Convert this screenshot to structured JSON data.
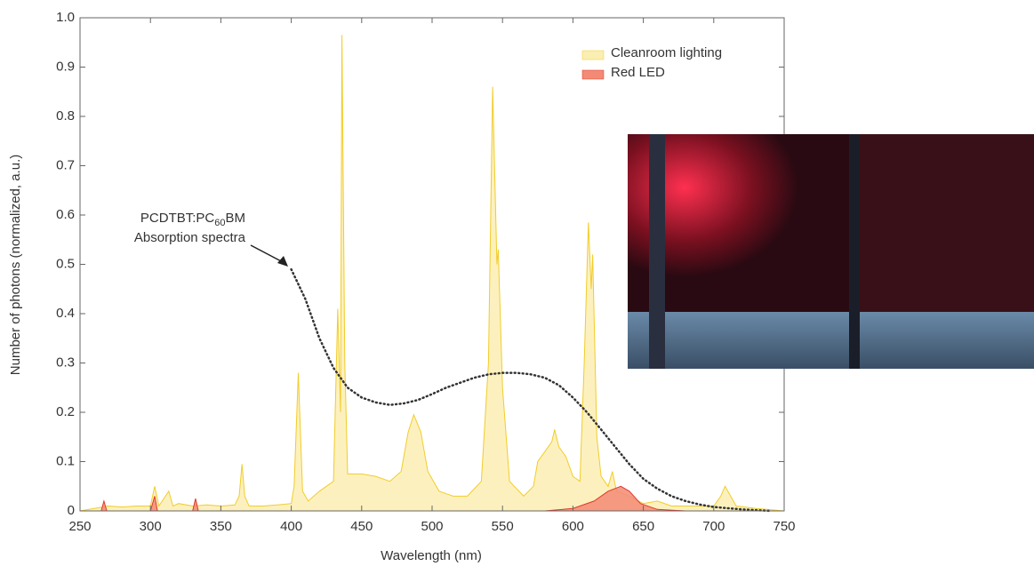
{
  "chart_data": {
    "type": "area",
    "xlabel": "Wavelength (nm)",
    "ylabel": "Number of photons (normalized, a.u.)",
    "xlim": [
      250,
      750
    ],
    "ylim": [
      0,
      1
    ],
    "xticks": [
      250,
      300,
      350,
      400,
      450,
      500,
      550,
      600,
      650,
      700,
      750
    ],
    "yticks": [
      0,
      0.1,
      0.2,
      0.3,
      0.4,
      0.5,
      0.6,
      0.7,
      0.8,
      0.9,
      {
        "value": 1,
        "label": "1.0"
      }
    ],
    "legend": "upper right",
    "series": [
      {
        "name": "Cleanroom lighting",
        "color": "#f2cc2a",
        "fill": "#fbeeb3",
        "x": [
          250,
          260,
          270,
          280,
          290,
          300,
          303,
          306,
          313,
          316,
          320,
          330,
          340,
          350,
          360,
          363,
          365,
          367,
          370,
          380,
          390,
          400,
          402,
          405,
          408,
          412,
          420,
          430,
          433,
          435,
          436,
          438,
          440,
          450,
          460,
          470,
          478,
          483,
          487,
          492,
          497,
          505,
          515,
          525,
          535,
          540,
          543,
          546,
          547,
          550,
          555,
          565,
          572,
          575,
          580,
          585,
          587,
          590,
          595,
          600,
          605,
          608,
          611,
          613,
          614,
          617,
          620,
          625,
          628,
          631,
          640,
          650,
          660,
          670,
          680,
          690,
          700,
          705,
          708,
          712,
          716,
          730,
          750
        ],
        "values": [
          0,
          0.005,
          0.01,
          0.008,
          0.01,
          0.01,
          0.05,
          0.01,
          0.04,
          0.01,
          0.015,
          0.01,
          0.012,
          0.01,
          0.012,
          0.03,
          0.095,
          0.03,
          0.01,
          0.01,
          0.012,
          0.015,
          0.05,
          0.28,
          0.04,
          0.02,
          0.04,
          0.06,
          0.41,
          0.2,
          0.965,
          0.3,
          0.075,
          0.075,
          0.07,
          0.06,
          0.08,
          0.16,
          0.195,
          0.16,
          0.08,
          0.04,
          0.03,
          0.03,
          0.06,
          0.3,
          0.86,
          0.5,
          0.53,
          0.25,
          0.06,
          0.03,
          0.05,
          0.1,
          0.12,
          0.14,
          0.165,
          0.13,
          0.11,
          0.07,
          0.06,
          0.3,
          0.585,
          0.45,
          0.52,
          0.15,
          0.07,
          0.05,
          0.08,
          0.04,
          0.03,
          0.015,
          0.02,
          0.01,
          0.01,
          0.01,
          0.01,
          0.03,
          0.05,
          0.03,
          0.01,
          0.005,
          0
        ]
      },
      {
        "name": "Red LED",
        "color": "#e0392a",
        "fill": "#f38a76",
        "x": [
          250,
          265,
          267,
          269,
          300,
          303,
          305,
          330,
          332,
          334,
          400,
          580,
          600,
          615,
          625,
          634,
          640,
          648,
          660,
          680,
          750
        ],
        "values": [
          0,
          0,
          0.02,
          0,
          0,
          0.03,
          0,
          0,
          0.025,
          0,
          0,
          0,
          0.005,
          0.02,
          0.04,
          0.05,
          0.04,
          0.015,
          0.003,
          0,
          0
        ]
      },
      {
        "color": "#333333",
        "dashed": true,
        "x": [
          400,
          410,
          420,
          430,
          440,
          450,
          460,
          470,
          480,
          490,
          500,
          510,
          520,
          530,
          540,
          550,
          560,
          570,
          580,
          590,
          600,
          610,
          620,
          630,
          640,
          650,
          660,
          670,
          680,
          690,
          700,
          720,
          740
        ],
        "values": [
          0.49,
          0.43,
          0.35,
          0.29,
          0.25,
          0.23,
          0.22,
          0.215,
          0.218,
          0.225,
          0.237,
          0.25,
          0.26,
          0.27,
          0.277,
          0.28,
          0.28,
          0.277,
          0.27,
          0.255,
          0.23,
          0.2,
          0.165,
          0.13,
          0.095,
          0.065,
          0.045,
          0.03,
          0.02,
          0.013,
          0.008,
          0.003,
          0
        ]
      }
    ],
    "annotation": {
      "prefix": "PCDTBT:PC",
      "subscript": "60",
      "suffix": "BM",
      "line2": "Absorption spectra"
    }
  }
}
